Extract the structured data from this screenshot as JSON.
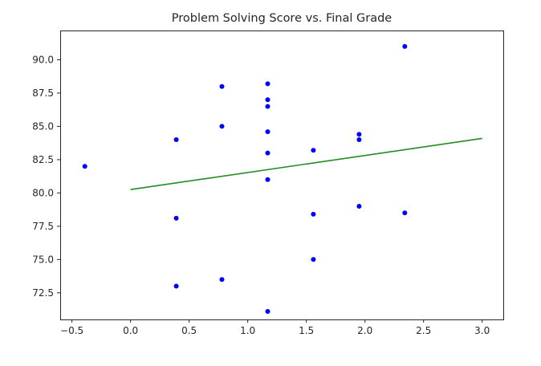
{
  "chart_data": {
    "type": "scatter",
    "title": "Problem Solving Score vs. Final Grade",
    "xlabel": "",
    "ylabel": "",
    "xlim": [
      -0.6,
      3.18
    ],
    "ylim": [
      70.5,
      92.2
    ],
    "grid": false,
    "x_ticks": [
      -0.5,
      0.0,
      0.5,
      1.0,
      1.5,
      2.0,
      2.5,
      3.0
    ],
    "x_tick_labels": [
      "−0.5",
      "0.0",
      "0.5",
      "1.0",
      "1.5",
      "2.0",
      "2.5",
      "3.0"
    ],
    "y_ticks": [
      72.5,
      75.0,
      77.5,
      80.0,
      82.5,
      85.0,
      87.5,
      90.0
    ],
    "y_tick_labels": [
      "72.5",
      "75.0",
      "77.5",
      "80.0",
      "82.5",
      "85.0",
      "87.5",
      "90.0"
    ],
    "series": [
      {
        "kind": "scatter",
        "color": "#0000ff",
        "points": [
          [
            -0.39,
            82.0
          ],
          [
            0.39,
            84.0
          ],
          [
            0.39,
            78.1
          ],
          [
            0.39,
            73.0
          ],
          [
            0.78,
            88.0
          ],
          [
            0.78,
            85.0
          ],
          [
            0.78,
            73.5
          ],
          [
            1.17,
            88.2
          ],
          [
            1.17,
            87.0
          ],
          [
            1.17,
            86.5
          ],
          [
            1.17,
            84.6
          ],
          [
            1.17,
            83.0
          ],
          [
            1.17,
            81.0
          ],
          [
            1.17,
            71.1
          ],
          [
            1.56,
            83.2
          ],
          [
            1.56,
            78.4
          ],
          [
            1.56,
            75.0
          ],
          [
            1.95,
            84.4
          ],
          [
            1.95,
            84.0
          ],
          [
            1.95,
            79.0
          ],
          [
            2.34,
            91.0
          ],
          [
            2.34,
            78.5
          ]
        ]
      },
      {
        "kind": "line",
        "color": "#228b22",
        "points": [
          [
            0.0,
            80.25
          ],
          [
            3.0,
            84.1
          ]
        ]
      }
    ]
  }
}
